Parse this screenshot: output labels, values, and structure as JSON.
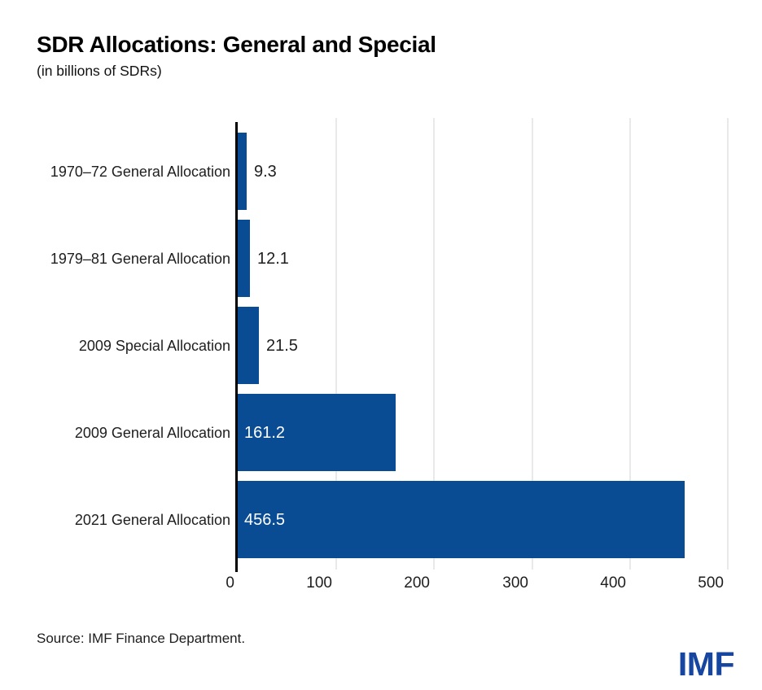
{
  "header": {
    "title": "SDR Allocations: General and Special",
    "subtitle": "(in billions of SDRs)"
  },
  "chart_data": {
    "type": "bar",
    "orientation": "horizontal",
    "title": "SDR Allocations: General and Special",
    "subtitle": "(in billions of SDRs)",
    "categories": [
      "1970–72 General Allocation",
      "1979–81 General Allocation",
      "2009 Special Allocation",
      "2009 General Allocation",
      "2021 General Allocation"
    ],
    "values": [
      9.3,
      12.1,
      21.5,
      161.2,
      456.5
    ],
    "value_labels": [
      "9.3",
      "12.1",
      "21.5",
      "161.2",
      "456.5"
    ],
    "x_ticks": [
      "0",
      "100",
      "200",
      "300",
      "400",
      "500"
    ],
    "x_tick_values": [
      0,
      100,
      200,
      300,
      400,
      500
    ],
    "xlim": [
      0,
      500
    ],
    "grid": true,
    "legend": "none",
    "colors": {
      "bar": "#0a4c94",
      "axis_line": "#000000",
      "gridline": "#e9e9e9",
      "inside_value_label": "#ffffff",
      "outside_value_label": "#1e1e1e",
      "category_label": "#1e1e1e"
    }
  },
  "footer": {
    "source": "Source: IMF Finance Department.",
    "logo_text": "IMF",
    "logo_color": "#1746a0"
  }
}
